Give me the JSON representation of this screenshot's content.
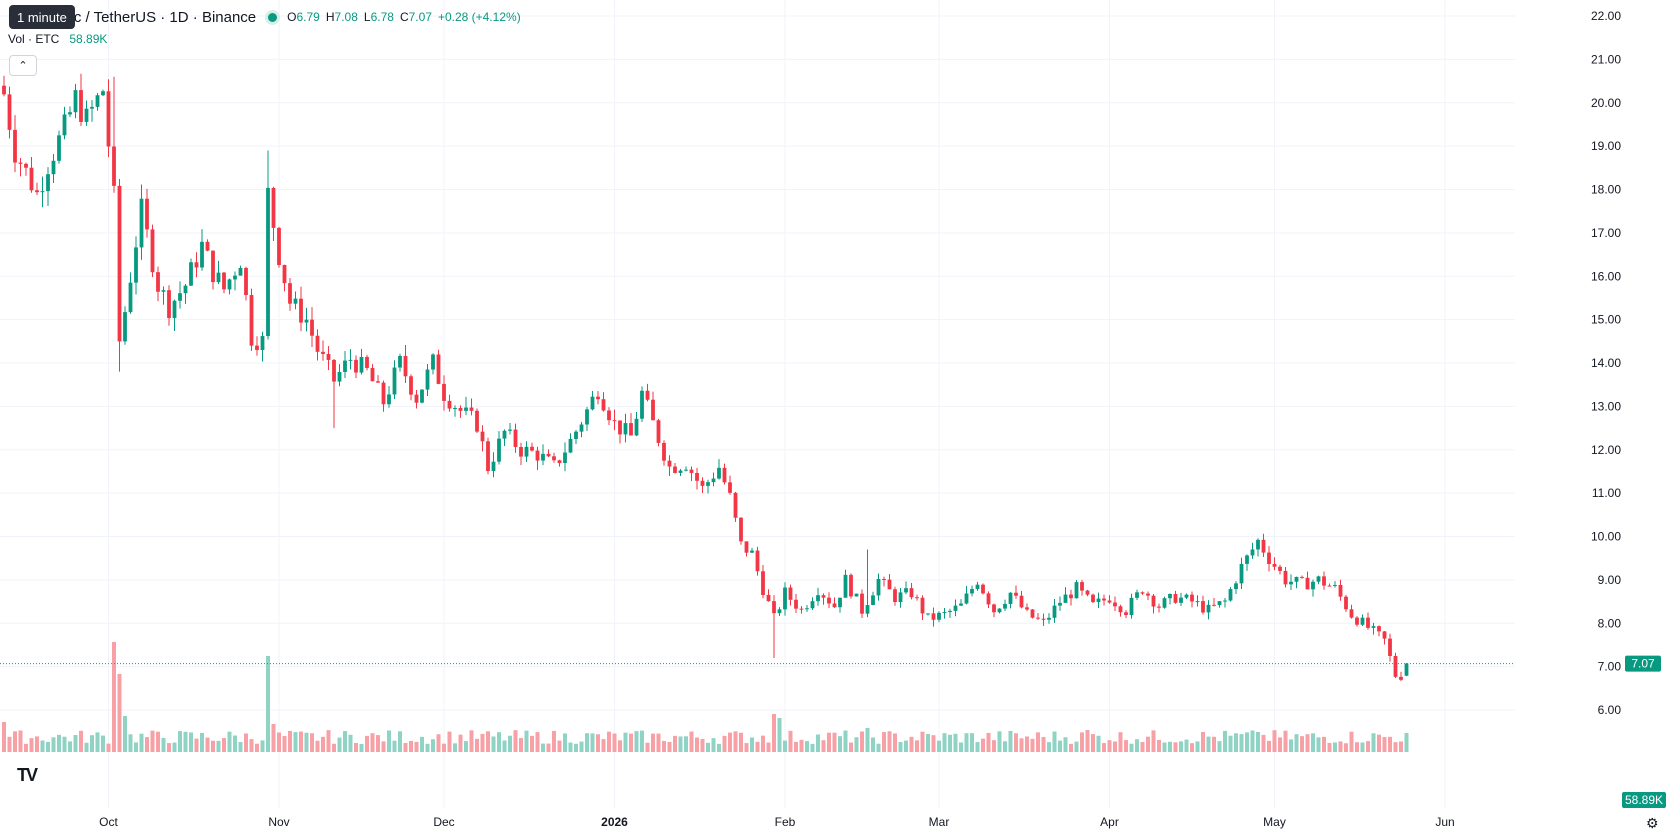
{
  "legend": {
    "symbol": "um Classic / TetherUS · 1D · Binance",
    "tooltip": "1 minute",
    "o_label": "O",
    "o": "6.79",
    "h_label": "H",
    "h": "7.08",
    "l_label": "L",
    "l": "6.78",
    "c_label": "C",
    "c": "7.07",
    "change": "+0.28 (+4.12%)"
  },
  "volume_legend": {
    "label": "Vol · ETC",
    "value": "58.89K"
  },
  "icons": {
    "collapse": "chevron-up-icon",
    "logo": "tradingview-logo-icon",
    "settings": "gear-icon"
  },
  "colors": {
    "up": "#089981",
    "down": "#f23645",
    "up_vol": "#8fd3c5",
    "down_vol": "#f7a1a6"
  },
  "chart_data": {
    "type": "candlestick",
    "y_ticks": [
      "22.00",
      "21.00",
      "20.00",
      "19.00",
      "18.00",
      "17.00",
      "16.00",
      "15.00",
      "14.00",
      "13.00",
      "12.00",
      "11.00",
      "10.00",
      "9.00",
      "8.00",
      "7.00",
      "6.00"
    ],
    "ylim": [
      5.45,
      22.3
    ],
    "x_labels": [
      {
        "label": "Oct",
        "i": 19
      },
      {
        "label": "Nov",
        "i": 50
      },
      {
        "label": "Dec",
        "i": 80
      },
      {
        "label": "2026",
        "i": 111
      },
      {
        "label": "Feb",
        "i": 142
      },
      {
        "label": "Mar",
        "i": 170
      },
      {
        "label": "Apr",
        "i": 201
      },
      {
        "label": "May",
        "i": 231
      },
      {
        "label": "Jun",
        "i": 262
      }
    ],
    "last_price": "7.07",
    "last_volume": "58.89K",
    "x_key": [
      {
        "i": 0,
        "c": 20.2
      },
      {
        "i": 2,
        "c": 18.9
      },
      {
        "i": 6,
        "c": 17.9
      },
      {
        "i": 8,
        "c": 18.6
      },
      {
        "i": 11,
        "c": 19.4
      },
      {
        "i": 13,
        "c": 20.1
      },
      {
        "i": 15,
        "c": 19.6
      },
      {
        "i": 18,
        "c": 20.3
      },
      {
        "i": 20,
        "c": 17.8
      },
      {
        "i": 21,
        "c": 14.5
      },
      {
        "i": 22,
        "c": 15.2
      },
      {
        "i": 24,
        "c": 16.8
      },
      {
        "i": 25,
        "c": 17.5
      },
      {
        "i": 28,
        "c": 15.8
      },
      {
        "i": 30,
        "c": 15.3
      },
      {
        "i": 33,
        "c": 15.8
      },
      {
        "i": 36,
        "c": 16.7
      },
      {
        "i": 38,
        "c": 16.1
      },
      {
        "i": 40,
        "c": 15.7
      },
      {
        "i": 43,
        "c": 16.4
      },
      {
        "i": 45,
        "c": 14.6
      },
      {
        "i": 47,
        "c": 14.5
      },
      {
        "i": 48,
        "c": 17.9
      },
      {
        "i": 50,
        "c": 16.5
      },
      {
        "i": 52,
        "c": 15.4
      },
      {
        "i": 55,
        "c": 15.0
      },
      {
        "i": 57,
        "c": 14.3
      },
      {
        "i": 60,
        "c": 13.6
      },
      {
        "i": 63,
        "c": 14.1
      },
      {
        "i": 66,
        "c": 13.8
      },
      {
        "i": 69,
        "c": 13.1
      },
      {
        "i": 72,
        "c": 14.0
      },
      {
        "i": 75,
        "c": 13.2
      },
      {
        "i": 78,
        "c": 14.0
      },
      {
        "i": 80,
        "c": 13.3
      },
      {
        "i": 83,
        "c": 12.9
      },
      {
        "i": 86,
        "c": 12.6
      },
      {
        "i": 88,
        "c": 11.6
      },
      {
        "i": 91,
        "c": 12.4
      },
      {
        "i": 94,
        "c": 12.0
      },
      {
        "i": 97,
        "c": 11.9
      },
      {
        "i": 100,
        "c": 11.6
      },
      {
        "i": 103,
        "c": 12.2
      },
      {
        "i": 106,
        "c": 12.9
      },
      {
        "i": 108,
        "c": 13.4
      },
      {
        "i": 111,
        "c": 12.6
      },
      {
        "i": 114,
        "c": 12.3
      },
      {
        "i": 116,
        "c": 13.3
      },
      {
        "i": 118,
        "c": 12.6
      },
      {
        "i": 121,
        "c": 11.6
      },
      {
        "i": 124,
        "c": 11.7
      },
      {
        "i": 127,
        "c": 11.1
      },
      {
        "i": 130,
        "c": 11.6
      },
      {
        "i": 132,
        "c": 10.9
      },
      {
        "i": 134,
        "c": 9.8
      },
      {
        "i": 136,
        "c": 9.6
      },
      {
        "i": 138,
        "c": 8.8
      },
      {
        "i": 140,
        "c": 8.1
      },
      {
        "i": 142,
        "c": 8.7
      },
      {
        "i": 145,
        "c": 8.3
      },
      {
        "i": 148,
        "c": 8.8
      },
      {
        "i": 151,
        "c": 8.4
      },
      {
        "i": 153,
        "c": 9.0
      },
      {
        "i": 156,
        "c": 8.3
      },
      {
        "i": 159,
        "c": 9.0
      },
      {
        "i": 162,
        "c": 8.6
      },
      {
        "i": 165,
        "c": 8.7
      },
      {
        "i": 168,
        "c": 8.1
      },
      {
        "i": 171,
        "c": 8.2
      },
      {
        "i": 174,
        "c": 8.4
      },
      {
        "i": 177,
        "c": 9.0
      },
      {
        "i": 180,
        "c": 8.3
      },
      {
        "i": 183,
        "c": 8.7
      },
      {
        "i": 186,
        "c": 8.2
      },
      {
        "i": 189,
        "c": 8.0
      },
      {
        "i": 192,
        "c": 8.5
      },
      {
        "i": 195,
        "c": 8.8
      },
      {
        "i": 198,
        "c": 8.4
      },
      {
        "i": 201,
        "c": 8.6
      },
      {
        "i": 204,
        "c": 8.3
      },
      {
        "i": 207,
        "c": 8.8
      },
      {
        "i": 210,
        "c": 8.4
      },
      {
        "i": 213,
        "c": 8.6
      },
      {
        "i": 216,
        "c": 8.5
      },
      {
        "i": 219,
        "c": 8.3
      },
      {
        "i": 222,
        "c": 8.5
      },
      {
        "i": 225,
        "c": 9.3
      },
      {
        "i": 228,
        "c": 9.9
      },
      {
        "i": 230,
        "c": 9.5
      },
      {
        "i": 233,
        "c": 9.0
      },
      {
        "i": 236,
        "c": 8.9
      },
      {
        "i": 239,
        "c": 9.0
      },
      {
        "i": 242,
        "c": 8.8
      },
      {
        "i": 245,
        "c": 8.2
      },
      {
        "i": 248,
        "c": 7.9
      },
      {
        "i": 251,
        "c": 7.6
      },
      {
        "i": 253,
        "c": 6.8
      },
      {
        "i": 254,
        "c": 6.79
      },
      {
        "i": 255,
        "c": 7.07
      }
    ]
  }
}
